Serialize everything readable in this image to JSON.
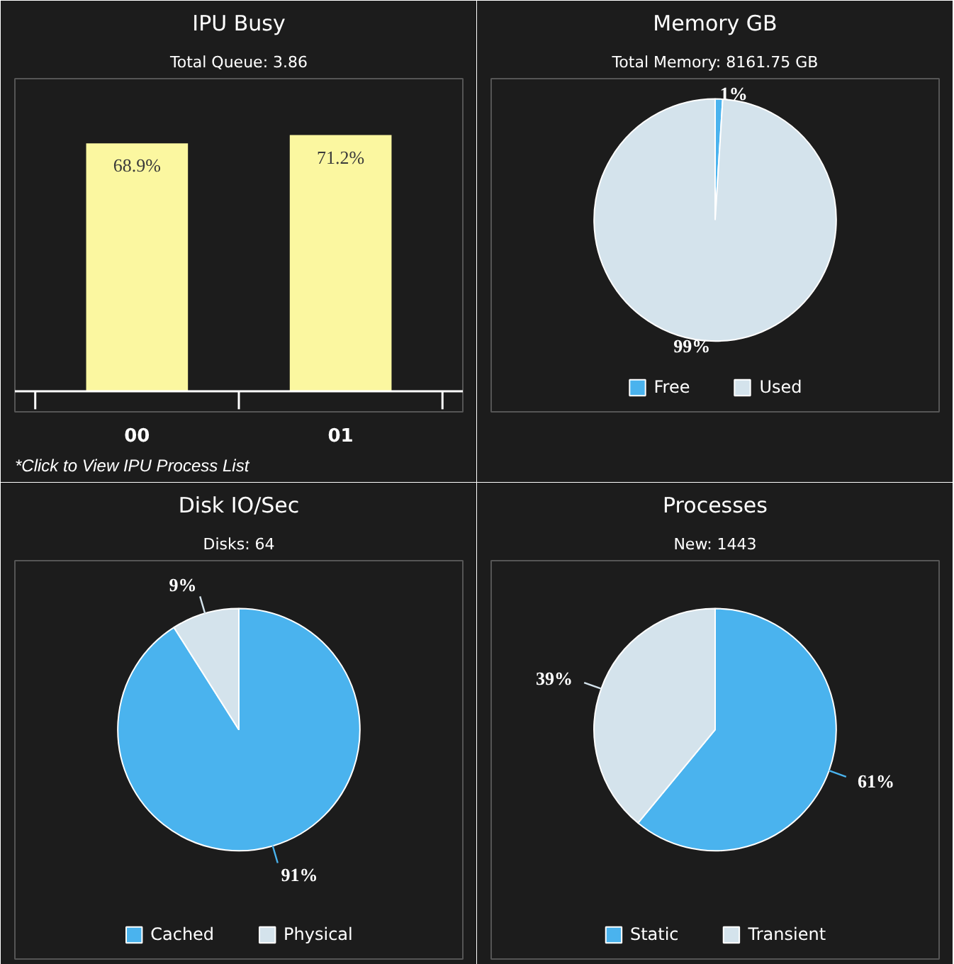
{
  "chart_data": [
    {
      "type": "bar",
      "title": "IPU Busy",
      "subtitle": "Total Queue: 3.86",
      "categories": [
        "00",
        "01"
      ],
      "values": [
        68.9,
        71.2
      ],
      "color": "#fbf7a0",
      "value_labels": [
        "68.9%",
        "71.2%"
      ],
      "annotations": [
        "*Click to View IPU Process List"
      ],
      "grid": false
    },
    {
      "type": "pie",
      "title": "Memory GB",
      "subtitle": "Total Memory: 8161.75 GB",
      "categories": [
        "Free",
        "Used"
      ],
      "values": [
        1,
        99
      ],
      "colors": [
        "#4ab3ee",
        "#d4e3ec"
      ],
      "value_labels": [
        "1%",
        "99%"
      ],
      "legend": "bottom"
    },
    {
      "type": "pie",
      "title": "Disk IO/Sec",
      "subtitle": "Disks: 64",
      "categories": [
        "Cached",
        "Physical"
      ],
      "values": [
        91,
        9
      ],
      "colors": [
        "#4ab3ee",
        "#d4e3ec"
      ],
      "value_labels": [
        "91%",
        "9%"
      ],
      "legend": "bottom"
    },
    {
      "type": "pie",
      "title": "Processes",
      "subtitle": "New: 1443",
      "categories": [
        "Static",
        "Transient"
      ],
      "values": [
        61,
        39
      ],
      "colors": [
        "#4ab3ee",
        "#d4e3ec"
      ],
      "value_labels": [
        "61%",
        "39%"
      ],
      "legend": "bottom"
    }
  ]
}
